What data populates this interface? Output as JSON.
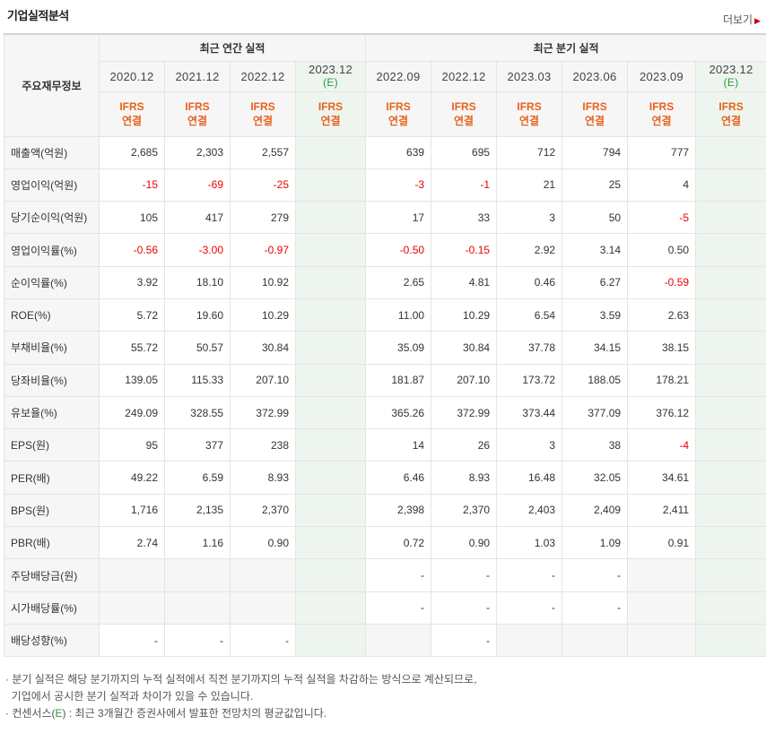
{
  "header": {
    "title": "기업실적분석",
    "more_label": "더보기"
  },
  "table": {
    "corner_label": "주요재무정보",
    "annual_label": "최근 연간 실적",
    "quarter_label": "최근 분기 실적",
    "annual_periods": [
      "2020.12",
      "2021.12",
      "2022.12",
      "2023.12"
    ],
    "quarter_periods": [
      "2022.09",
      "2022.12",
      "2023.03",
      "2023.06",
      "2023.09",
      "2023.12"
    ],
    "estimate_mark": "(E)",
    "ifrs_line1": "IFRS",
    "ifrs_line2": "연결",
    "rows": [
      {
        "label": "매출액(억원)",
        "annual": [
          "2,685",
          "2,303",
          "2,557",
          ""
        ],
        "quarter": [
          "639",
          "695",
          "712",
          "794",
          "777",
          ""
        ]
      },
      {
        "label": "영업이익(억원)",
        "annual": [
          "-15",
          "-69",
          "-25",
          ""
        ],
        "quarter": [
          "-3",
          "-1",
          "21",
          "25",
          "4",
          ""
        ]
      },
      {
        "label": "당기순이익(억원)",
        "annual": [
          "105",
          "417",
          "279",
          ""
        ],
        "quarter": [
          "17",
          "33",
          "3",
          "50",
          "-5",
          ""
        ]
      },
      {
        "label": "영업이익률(%)",
        "annual": [
          "-0.56",
          "-3.00",
          "-0.97",
          ""
        ],
        "quarter": [
          "-0.50",
          "-0.15",
          "2.92",
          "3.14",
          "0.50",
          ""
        ]
      },
      {
        "label": "순이익률(%)",
        "annual": [
          "3.92",
          "18.10",
          "10.92",
          ""
        ],
        "quarter": [
          "2.65",
          "4.81",
          "0.46",
          "6.27",
          "-0.59",
          ""
        ]
      },
      {
        "label": "ROE(%)",
        "annual": [
          "5.72",
          "19.60",
          "10.29",
          ""
        ],
        "quarter": [
          "11.00",
          "10.29",
          "6.54",
          "3.59",
          "2.63",
          ""
        ]
      },
      {
        "label": "부채비율(%)",
        "annual": [
          "55.72",
          "50.57",
          "30.84",
          ""
        ],
        "quarter": [
          "35.09",
          "30.84",
          "37.78",
          "34.15",
          "38.15",
          ""
        ]
      },
      {
        "label": "당좌비율(%)",
        "annual": [
          "139.05",
          "115.33",
          "207.10",
          ""
        ],
        "quarter": [
          "181.87",
          "207.10",
          "173.72",
          "188.05",
          "178.21",
          ""
        ]
      },
      {
        "label": "유보율(%)",
        "annual": [
          "249.09",
          "328.55",
          "372.99",
          ""
        ],
        "quarter": [
          "365.26",
          "372.99",
          "373.44",
          "377.09",
          "376.12",
          ""
        ]
      },
      {
        "label": "EPS(원)",
        "annual": [
          "95",
          "377",
          "238",
          ""
        ],
        "quarter": [
          "14",
          "26",
          "3",
          "38",
          "-4",
          ""
        ]
      },
      {
        "label": "PER(배)",
        "annual": [
          "49.22",
          "6.59",
          "8.93",
          ""
        ],
        "quarter": [
          "6.46",
          "8.93",
          "16.48",
          "32.05",
          "34.61",
          ""
        ]
      },
      {
        "label": "BPS(원)",
        "annual": [
          "1,716",
          "2,135",
          "2,370",
          ""
        ],
        "quarter": [
          "2,398",
          "2,370",
          "2,403",
          "2,409",
          "2,411",
          ""
        ]
      },
      {
        "label": "PBR(배)",
        "annual": [
          "2.74",
          "1.16",
          "0.90",
          ""
        ],
        "quarter": [
          "0.72",
          "0.90",
          "1.03",
          "1.09",
          "0.91",
          ""
        ]
      },
      {
        "label": "주당배당금(원)",
        "annual": [
          "",
          "",
          "",
          ""
        ],
        "quarter": [
          "-",
          "-",
          "-",
          "-",
          "",
          ""
        ]
      },
      {
        "label": "시가배당률(%)",
        "annual": [
          "",
          "",
          "",
          ""
        ],
        "quarter": [
          "-",
          "-",
          "-",
          "-",
          "",
          ""
        ]
      },
      {
        "label": "배당성향(%)",
        "annual": [
          "-",
          "-",
          "-",
          ""
        ],
        "quarter": [
          "",
          "-",
          "",
          "",
          "",
          ""
        ]
      }
    ]
  },
  "notes": {
    "line1": "분기 실적은 해당 분기까지의 누적 실적에서 직전 분기까지의 누적 실적을 차감하는 방식으로 계산되므로,",
    "line2": "기업에서 공시한 분기 실적과 차이가 있을 수 있습니다.",
    "line3_prefix": "컨센서스(",
    "line3_e": "E",
    "line3_suffix": ") : 최근 3개월간 증권사에서 발표한 전망치의 평균값입니다."
  }
}
